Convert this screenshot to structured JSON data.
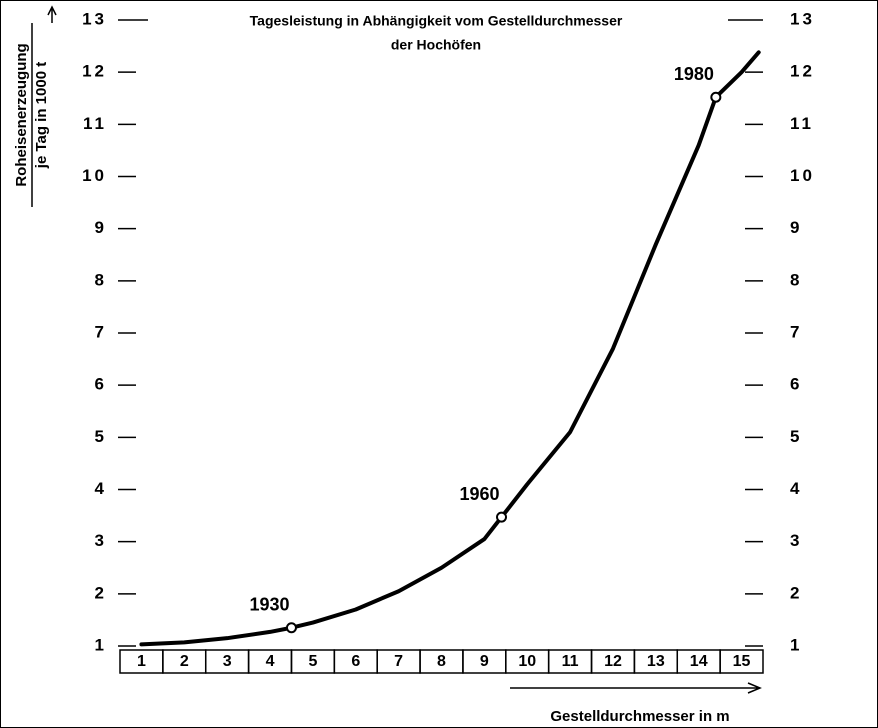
{
  "chart_data": {
    "type": "line",
    "title_lines": [
      "Tagesleistung in Abhängigkeit vom Gestelldurchmesser",
      "der Hochöfen"
    ],
    "y_label_lines": [
      "Roheisenerzeugung",
      "je Tag in 1000 t"
    ],
    "x_label": "Gestelldurchmesser in m",
    "xlim": [
      0.5,
      15.5
    ],
    "xticks": [
      1,
      2,
      3,
      4,
      5,
      6,
      7,
      8,
      9,
      10,
      11,
      12,
      13,
      14,
      15
    ],
    "ylim": [
      1,
      13
    ],
    "yticks": [
      1,
      2,
      3,
      4,
      5,
      6,
      7,
      8,
      9,
      10,
      11,
      12,
      13
    ],
    "color": "#000000",
    "series": [
      {
        "x": [
          1,
          2,
          3,
          4,
          4.5,
          5,
          6,
          7,
          8,
          9,
          9.4,
          10,
          11,
          12,
          13,
          14,
          14.4,
          15,
          15.4
        ],
        "values": [
          1.03,
          1.07,
          1.15,
          1.27,
          1.35,
          1.45,
          1.7,
          2.05,
          2.5,
          3.05,
          3.47,
          4.1,
          5.1,
          6.7,
          8.7,
          10.6,
          11.52,
          12.0,
          12.38
        ]
      }
    ],
    "annotations": [
      {
        "label": "1930",
        "x": 4.5,
        "y": 1.35
      },
      {
        "label": "1960",
        "x": 9.4,
        "y": 3.47
      },
      {
        "label": "1980",
        "x": 14.4,
        "y": 11.52
      }
    ]
  }
}
